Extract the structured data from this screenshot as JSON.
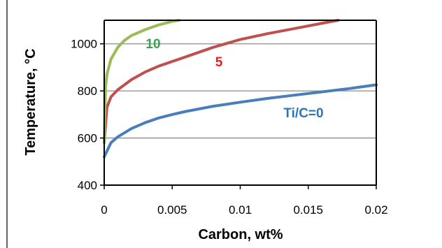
{
  "chart_data": {
    "type": "line",
    "title": "",
    "xlabel": "Carbon, wt%",
    "ylabel": "Temperature, °C",
    "xlim": [
      0,
      0.02
    ],
    "ylim": [
      400,
      1100
    ],
    "x_ticks": [
      "0",
      "0.005",
      "0.01",
      "0.015",
      "0.02"
    ],
    "y_ticks": [
      "400",
      "600",
      "800",
      "1000"
    ],
    "grid": "horizontal",
    "legend": "none",
    "series": [
      {
        "name": "Ti/C=0",
        "color": "#4a7ebb",
        "x": [
          0,
          0.0005,
          0.001,
          0.002,
          0.003,
          0.004,
          0.005,
          0.006,
          0.008,
          0.01,
          0.012,
          0.014,
          0.016,
          0.018,
          0.02
        ],
        "y": [
          520,
          580,
          605,
          640,
          665,
          685,
          700,
          713,
          735,
          752,
          768,
          782,
          796,
          810,
          826
        ]
      },
      {
        "name": "5",
        "color": "#c0504d",
        "x": [
          0,
          0.0002,
          0.0005,
          0.001,
          0.002,
          0.003,
          0.004,
          0.006,
          0.008,
          0.01,
          0.012,
          0.014,
          0.016,
          0.0172
        ],
        "y": [
          580,
          730,
          775,
          805,
          848,
          880,
          905,
          945,
          985,
          1018,
          1043,
          1065,
          1087,
          1100
        ]
      },
      {
        "name": "10",
        "color": "#9bbb59",
        "x": [
          0,
          0.0001,
          0.0002,
          0.0005,
          0.001,
          0.0015,
          0.002,
          0.003,
          0.004,
          0.005,
          0.0055
        ],
        "y": [
          580,
          815,
          870,
          935,
          985,
          1015,
          1035,
          1060,
          1080,
          1095,
          1100
        ]
      }
    ],
    "labels": [
      {
        "text": "10",
        "color": "#3aa14f"
      },
      {
        "text": "5",
        "color": "#ef1d1d"
      },
      {
        "text": "Ti/C=0",
        "color": "#2e75b6"
      }
    ]
  }
}
